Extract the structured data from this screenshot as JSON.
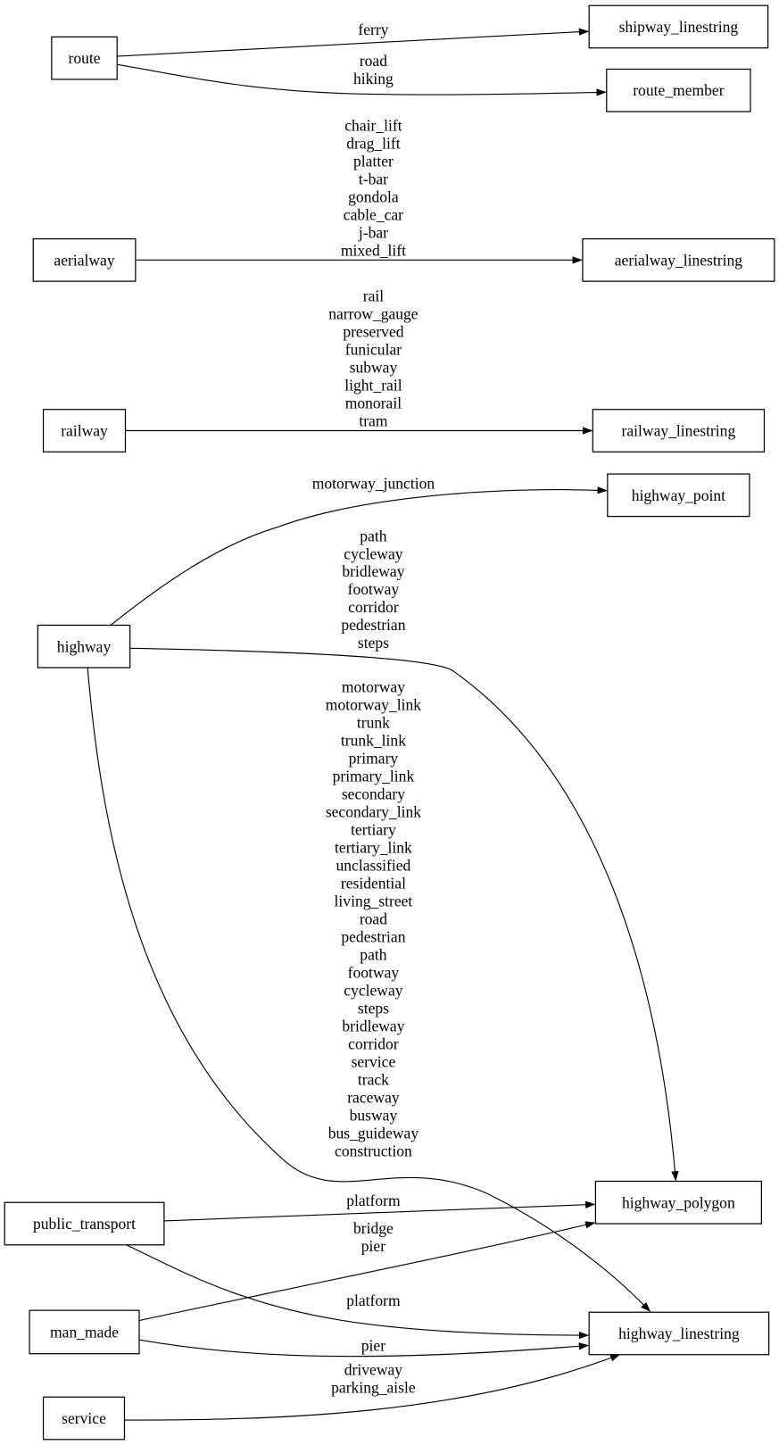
{
  "nodes": {
    "route": "route",
    "shipway_linestring": "shipway_linestring",
    "route_member": "route_member",
    "aerialway": "aerialway",
    "aerialway_linestring": "aerialway_linestring",
    "railway": "railway",
    "railway_linestring": "railway_linestring",
    "highway_point": "highway_point",
    "highway": "highway",
    "highway_polygon": "highway_polygon",
    "highway_linestring": "highway_linestring",
    "public_transport": "public_transport",
    "man_made": "man_made",
    "service": "service"
  },
  "edges": [
    {
      "source": "route",
      "target": "shipway_linestring",
      "labels": [
        "ferry"
      ]
    },
    {
      "source": "route",
      "target": "route_member",
      "labels": [
        "road",
        "hiking"
      ]
    },
    {
      "source": "aerialway",
      "target": "aerialway_linestring",
      "labels": [
        "chair_lift",
        "drag_lift",
        "platter",
        "t-bar",
        "gondola",
        "cable_car",
        "j-bar",
        "mixed_lift"
      ]
    },
    {
      "source": "railway",
      "target": "railway_linestring",
      "labels": [
        "rail",
        "narrow_gauge",
        "preserved",
        "funicular",
        "subway",
        "light_rail",
        "monorail",
        "tram"
      ]
    },
    {
      "source": "highway",
      "target": "highway_point",
      "labels": [
        "motorway_junction"
      ]
    },
    {
      "source": "highway",
      "target": "highway_polygon",
      "labels": [
        "path",
        "cycleway",
        "bridleway",
        "footway",
        "corridor",
        "pedestrian",
        "steps"
      ]
    },
    {
      "source": "highway",
      "target": "highway_linestring",
      "labels": [
        "motorway",
        "motorway_link",
        "trunk",
        "trunk_link",
        "primary",
        "primary_link",
        "secondary",
        "secondary_link",
        "tertiary",
        "tertiary_link",
        "unclassified",
        "residential",
        "living_street",
        "road",
        "pedestrian",
        "path",
        "footway",
        "cycleway",
        "steps",
        "bridleway",
        "corridor",
        "service",
        "track",
        "raceway",
        "busway",
        "bus_guideway",
        "construction"
      ]
    },
    {
      "source": "public_transport",
      "target": "highway_polygon",
      "labels": [
        "platform"
      ]
    },
    {
      "source": "man_made",
      "target": "highway_polygon",
      "labels": [
        "bridge",
        "pier"
      ]
    },
    {
      "source": "public_transport",
      "target": "highway_linestring",
      "labels": [
        "platform"
      ]
    },
    {
      "source": "man_made",
      "target": "highway_linestring",
      "labels": [
        "pier"
      ]
    },
    {
      "source": "service",
      "target": "highway_linestring",
      "labels": [
        "driveway",
        "parking_aisle"
      ]
    }
  ]
}
